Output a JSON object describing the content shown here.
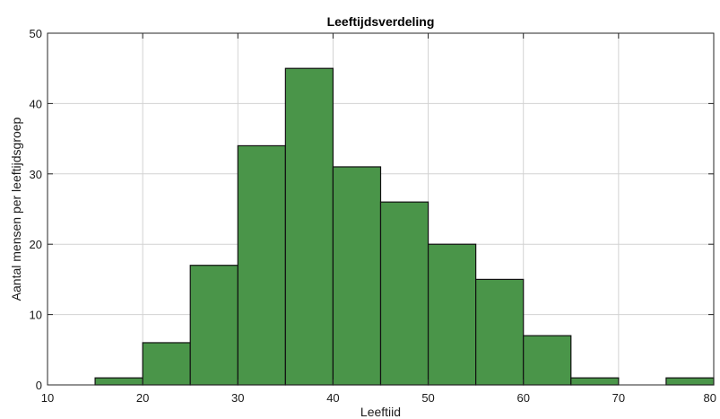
{
  "chart_data": {
    "type": "bar",
    "title": "Leeftijdsverdeling",
    "xlabel": "Leeftiid",
    "ylabel": "Aantal mensen per leeftijdsgroep",
    "xlim": [
      10,
      80
    ],
    "ylim": [
      0,
      50
    ],
    "xticks": [
      10,
      20,
      30,
      40,
      50,
      60,
      70,
      80
    ],
    "yticks": [
      0,
      10,
      20,
      30,
      40,
      50
    ],
    "grid": true,
    "bar_color": "#4a9549",
    "edge_color": "#111111",
    "bins": [
      {
        "x0": 15,
        "x1": 20,
        "value": 1
      },
      {
        "x0": 20,
        "x1": 25,
        "value": 6
      },
      {
        "x0": 25,
        "x1": 30,
        "value": 17
      },
      {
        "x0": 30,
        "x1": 35,
        "value": 34
      },
      {
        "x0": 35,
        "x1": 40,
        "value": 45
      },
      {
        "x0": 40,
        "x1": 45,
        "value": 31
      },
      {
        "x0": 45,
        "x1": 50,
        "value": 26
      },
      {
        "x0": 50,
        "x1": 55,
        "value": 20
      },
      {
        "x0": 55,
        "x1": 60,
        "value": 15
      },
      {
        "x0": 60,
        "x1": 65,
        "value": 7
      },
      {
        "x0": 65,
        "x1": 70,
        "value": 1
      },
      {
        "x0": 70,
        "x1": 75,
        "value": 0
      },
      {
        "x0": 75,
        "x1": 80,
        "value": 1
      }
    ]
  }
}
